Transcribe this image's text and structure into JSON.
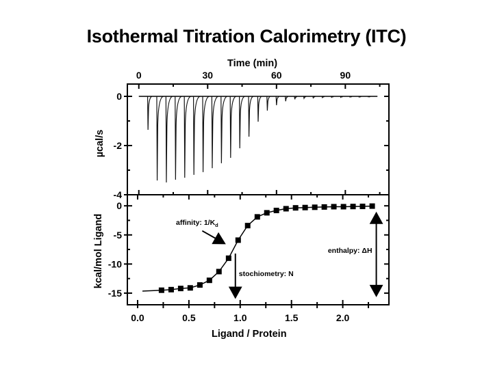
{
  "title": "Isothermal Titration Calorimetry (ITC)",
  "chart_data": [
    {
      "type": "line",
      "name": "raw-thermogram",
      "title": "Isothermal Titration Calorimetry (ITC)",
      "xlabel": "Time (min)",
      "ylabel": "µcal/s",
      "x_axis_position": "top",
      "xlim": [
        -5,
        109
      ],
      "ylim": [
        -4,
        0.5
      ],
      "xticks": [
        0,
        30,
        60,
        90
      ],
      "xtick_labels": [
        "0",
        "30",
        "60",
        "90"
      ],
      "xminor": [
        15,
        45,
        75,
        105
      ],
      "yticks": [
        0,
        -2,
        -4
      ],
      "ytick_labels": [
        "0",
        "-2",
        "-4"
      ],
      "yminor": [
        -1,
        -3
      ],
      "baseline": {
        "start": 0,
        "end": 104,
        "value": 0
      },
      "injections": {
        "time": [
          4,
          8,
          12,
          16,
          20,
          24,
          28,
          32,
          36,
          40,
          44,
          48,
          52,
          56,
          60,
          64,
          68,
          72,
          76,
          80,
          84,
          88,
          92,
          96,
          100
        ],
        "peak": [
          -1.36,
          -3.42,
          -3.5,
          -3.39,
          -3.31,
          -3.19,
          -3.08,
          -2.92,
          -2.72,
          -2.5,
          -2.11,
          -1.64,
          -1.03,
          -0.58,
          -0.36,
          -0.2,
          -0.12,
          -0.08,
          -0.06,
          -0.05,
          -0.04,
          -0.04,
          -0.03,
          -0.03,
          -0.02
        ]
      },
      "grid": false
    },
    {
      "type": "scatter",
      "name": "binding-isotherm",
      "xlabel": "Ligand / Protein",
      "ylabel": "kcal/mol Ligand",
      "xlim": [
        -0.1,
        2.45
      ],
      "ylim": [
        -17,
        1.9
      ],
      "xticks": [
        0.0,
        0.5,
        1.0,
        1.5,
        2.0
      ],
      "xtick_labels": [
        "0.0",
        "0.5",
        "1.0",
        "1.5",
        "2.0"
      ],
      "xminor": [
        0.25,
        0.75,
        1.25,
        1.75,
        2.25
      ],
      "yticks": [
        0,
        -5,
        -10,
        -15
      ],
      "ytick_labels": [
        "0",
        "-5",
        "-10",
        "-15"
      ],
      "yminor": [
        -2.5,
        -7.5,
        -12.5
      ],
      "grid": false,
      "series": [
        {
          "name": "data",
          "marker": "square",
          "x": [
            0.233,
            0.327,
            0.42,
            0.513,
            0.607,
            0.7,
            0.793,
            0.887,
            0.98,
            1.073,
            1.167,
            1.26,
            1.353,
            1.447,
            1.54,
            1.633,
            1.727,
            1.82,
            1.913,
            2.007,
            2.1,
            2.193,
            2.287
          ],
          "y": [
            -14.5,
            -14.4,
            -14.2,
            -14.1,
            -13.6,
            -12.8,
            -11.3,
            -9.0,
            -5.9,
            -3.4,
            -1.9,
            -1.2,
            -0.8,
            -0.5,
            -0.35,
            -0.3,
            -0.25,
            -0.2,
            -0.15,
            -0.15,
            -0.12,
            -0.1,
            -0.05
          ]
        },
        {
          "name": "fit",
          "marker": "none",
          "x": [
            0.047,
            0.233,
            0.327,
            0.42,
            0.513,
            0.607,
            0.7,
            0.793,
            0.887,
            0.98,
            1.073,
            1.167,
            1.26,
            1.353,
            1.447,
            1.54,
            1.633,
            1.727,
            1.82,
            1.913,
            2.007,
            2.1,
            2.193,
            2.287
          ],
          "y": [
            -14.65,
            -14.5,
            -14.4,
            -14.2,
            -14.1,
            -13.6,
            -12.8,
            -11.3,
            -9.0,
            -5.9,
            -3.4,
            -1.9,
            -1.2,
            -0.8,
            -0.5,
            -0.35,
            -0.3,
            -0.25,
            -0.2,
            -0.15,
            -0.15,
            -0.12,
            -0.1,
            -0.05
          ]
        }
      ],
      "annotations": [
        {
          "name": "affinity",
          "text_main": "affinity: 1/K",
          "text_sub": "d",
          "arrow_from": [
            0.63,
            -4.3
          ],
          "arrow_to": [
            0.86,
            -6.6
          ]
        },
        {
          "name": "stoichiometry",
          "text": "stochiometry: N",
          "arrow_from": [
            0.953,
            -8.2
          ],
          "arrow_to": [
            0.953,
            -16.0
          ]
        },
        {
          "name": "enthalpy",
          "text": "enthalpy: ΔH",
          "arrow_from": [
            2.327,
            -1.0
          ],
          "arrow_to": [
            2.327,
            -15.7
          ],
          "double_headed": true
        }
      ]
    }
  ]
}
